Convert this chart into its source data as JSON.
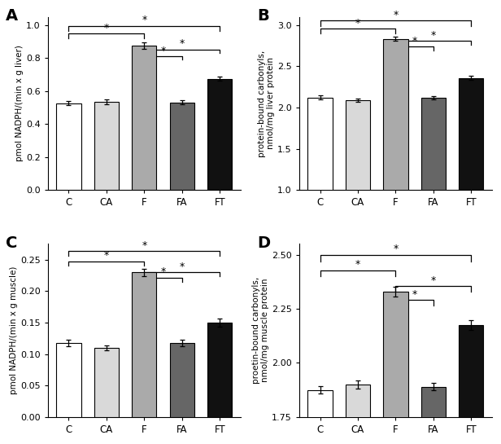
{
  "categories": [
    "C",
    "CA",
    "F",
    "FA",
    "FT"
  ],
  "bar_colors": [
    "#ffffff",
    "#d9d9d9",
    "#aaaaaa",
    "#666666",
    "#111111"
  ],
  "bar_edgecolor": "#000000",
  "A_values": [
    0.525,
    0.535,
    0.875,
    0.53,
    0.675
  ],
  "A_errors": [
    0.012,
    0.015,
    0.018,
    0.013,
    0.012
  ],
  "A_ylabel": "pmol NADPH/(min x g liver)",
  "A_ylim": [
    0.0,
    1.05
  ],
  "A_yticks": [
    0.0,
    0.2,
    0.4,
    0.6,
    0.8,
    1.0
  ],
  "A_yticklabels": [
    "0.0",
    "0.2",
    "0.4",
    "0.6",
    "0.8",
    "1.0"
  ],
  "A_label": "A",
  "B_values": [
    2.12,
    2.09,
    2.83,
    2.12,
    2.36
  ],
  "B_errors": [
    0.025,
    0.02,
    0.025,
    0.02,
    0.025
  ],
  "B_ylabel": "protein-bound carbonyls,\nnmol/mg liver protein",
  "B_ylim": [
    1.0,
    3.1
  ],
  "B_yticks": [
    1.0,
    1.5,
    2.0,
    2.5,
    3.0
  ],
  "B_yticklabels": [
    "1.0",
    "1.5",
    "2.0",
    "2.5",
    "3.0"
  ],
  "B_label": "B",
  "C_values": [
    0.118,
    0.11,
    0.23,
    0.118,
    0.15
  ],
  "C_errors": [
    0.005,
    0.004,
    0.006,
    0.005,
    0.006
  ],
  "C_ylabel": "pmol NADPH/(min x g muscle)",
  "C_ylim": [
    0.0,
    0.275
  ],
  "C_yticks": [
    0.0,
    0.05,
    0.1,
    0.15,
    0.2,
    0.25
  ],
  "C_yticklabels": [
    "0.00",
    "0.05",
    "0.10",
    "0.15",
    "0.20",
    "0.25"
  ],
  "C_label": "C",
  "D_values": [
    1.875,
    1.9,
    2.33,
    1.89,
    2.175
  ],
  "D_errors": [
    0.018,
    0.02,
    0.022,
    0.016,
    0.022
  ],
  "D_ylabel": "proetin-bound carbonyls,\nnmol/mg muscle protein",
  "D_ylim": [
    1.75,
    2.55
  ],
  "D_yticks": [
    1.75,
    2.0,
    2.25,
    2.5
  ],
  "D_yticklabels": [
    "1.75",
    "2.00",
    "2.25",
    "2.50"
  ],
  "D_label": "D",
  "bar_linewidth": 0.8
}
